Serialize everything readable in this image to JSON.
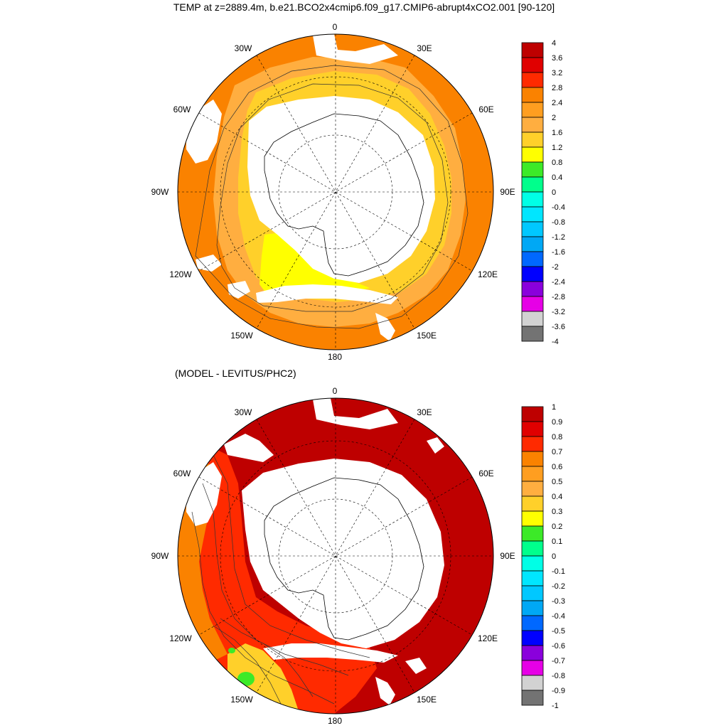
{
  "title": "TEMP at z=2889.4m, b.e21.BCO2x4cmip6.f09_g17.CMIP6-abrupt4xCO2.001 [90-120]",
  "subtitle": "(MODEL - LEVITUS/PHC2)",
  "lon_labels": {
    "top": "0",
    "top_left": "30W",
    "top_right": "30E",
    "upper_left": "60W",
    "upper_right": "60E",
    "left": "90W",
    "right": "90E",
    "lower_left": "120W",
    "lower_right": "120E",
    "bottom_left": "150W",
    "bottom_right": "150E",
    "bottom": "180"
  },
  "panel1_colorbar": {
    "labels": [
      "4",
      "3.6",
      "3.2",
      "2.8",
      "2.4",
      "2",
      "1.6",
      "1.2",
      "0.8",
      "0.4",
      "0",
      "-0.4",
      "-0.8",
      "-1.2",
      "-1.6",
      "-2",
      "-2.4",
      "-2.8",
      "-3.2",
      "-3.6",
      "-4"
    ],
    "colors": [
      "#be0000",
      "#e00000",
      "#ff2a00",
      "#fa8200",
      "#ff9e20",
      "#ffae40",
      "#ffd02a",
      "#ffff00",
      "#3cea28",
      "#00ff8c",
      "#00ffe6",
      "#00e6ff",
      "#00c8ff",
      "#00a8f5",
      "#0068ff",
      "#0000ff",
      "#8a00dc",
      "#e600e6",
      "#d2d2d2",
      "#737373"
    ]
  },
  "panel2_colorbar": {
    "labels": [
      "1",
      "0.9",
      "0.8",
      "0.7",
      "0.6",
      "0.5",
      "0.4",
      "0.3",
      "0.2",
      "0.1",
      "0",
      "-0.1",
      "-0.2",
      "-0.3",
      "-0.4",
      "-0.5",
      "-0.6",
      "-0.7",
      "-0.8",
      "-0.9",
      "-1"
    ],
    "colors": [
      "#be0000",
      "#e00000",
      "#ff2a00",
      "#fa8200",
      "#ff9e20",
      "#ffae40",
      "#ffd02a",
      "#ffff00",
      "#3cea28",
      "#00ff8c",
      "#00ffe6",
      "#00e6ff",
      "#00c8ff",
      "#00a8f5",
      "#0068ff",
      "#0000ff",
      "#8a00dc",
      "#e600e6",
      "#d2d2d2",
      "#737373"
    ]
  },
  "panel1_fields": {
    "ocean_main": "#fa8200",
    "ocean_inner": "#ffae40",
    "near_shelf": "#ffd02a",
    "ross_sea": "#ffff00"
  },
  "panel2_fields": {
    "ocean_main": "#be0000",
    "pacific_sector": "#ff2a00",
    "west_pacific_edge": "#fa8200",
    "warm_patch": "#ffd02a",
    "anomaly_spot": "#3cea28"
  }
}
